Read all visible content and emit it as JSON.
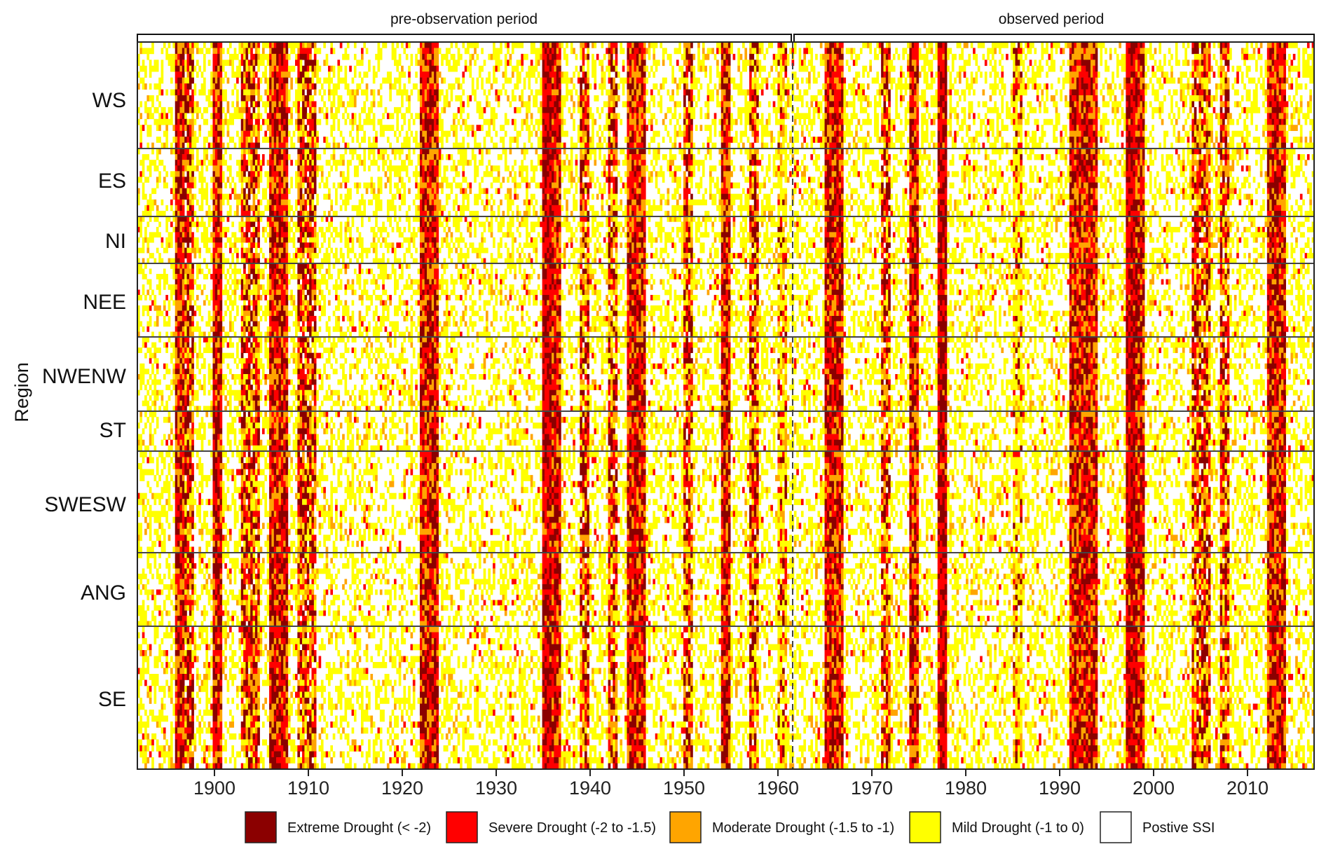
{
  "chart_data": {
    "type": "heatmap",
    "x_range": [
      1891,
      2016
    ],
    "x_ticks": [
      1900,
      1910,
      1920,
      1930,
      1940,
      1950,
      1960,
      1970,
      1980,
      1990,
      2000,
      2010
    ],
    "ylabel": "Region",
    "periods": [
      {
        "label": "pre-observation period",
        "start": 1891,
        "end": 1961
      },
      {
        "label": "observed period",
        "start": 1961,
        "end": 2016
      }
    ],
    "divider_year": 1961,
    "regions": [
      "WS",
      "ES",
      "NI",
      "NEE",
      "NWENW",
      "ST",
      "SWESW",
      "ANG",
      "SE"
    ],
    "legend": [
      {
        "label": "Extreme Drought (< -2)",
        "color": "#8b0000"
      },
      {
        "label": "Severe Drought (-2 to -1.5)",
        "color": "#ff0000"
      },
      {
        "label": "Moderate Drought (-1.5 to -1)",
        "color": "#ffa500"
      },
      {
        "label": "Mild Drought (-1 to 0)",
        "color": "#ffff00"
      },
      {
        "label": "Postive SSI",
        "color": "#ffffff"
      }
    ],
    "drought_years": [
      {
        "year": 1895,
        "level": 3
      },
      {
        "year": 1896,
        "level": 2
      },
      {
        "year": 1899,
        "level": 3
      },
      {
        "year": 1902,
        "level": 2
      },
      {
        "year": 1903,
        "level": 2
      },
      {
        "year": 1905,
        "level": 3
      },
      {
        "year": 1906,
        "level": 3
      },
      {
        "year": 1908,
        "level": 2
      },
      {
        "year": 1909,
        "level": 2
      },
      {
        "year": 1921,
        "level": 3
      },
      {
        "year": 1922,
        "level": 3
      },
      {
        "year": 1934,
        "level": 4
      },
      {
        "year": 1935,
        "level": 3
      },
      {
        "year": 1938,
        "level": 2
      },
      {
        "year": 1941,
        "level": 2
      },
      {
        "year": 1943,
        "level": 3
      },
      {
        "year": 1944,
        "level": 3
      },
      {
        "year": 1949,
        "level": 2
      },
      {
        "year": 1953,
        "level": 3
      },
      {
        "year": 1956,
        "level": 2
      },
      {
        "year": 1959,
        "level": 1
      },
      {
        "year": 1964,
        "level": 3
      },
      {
        "year": 1965,
        "level": 3
      },
      {
        "year": 1970,
        "level": 2
      },
      {
        "year": 1973,
        "level": 3
      },
      {
        "year": 1976,
        "level": 4
      },
      {
        "year": 1984,
        "level": 1
      },
      {
        "year": 1990,
        "level": 3
      },
      {
        "year": 1991,
        "level": 3
      },
      {
        "year": 1992,
        "level": 3
      },
      {
        "year": 1996,
        "level": 4
      },
      {
        "year": 1997,
        "level": 3
      },
      {
        "year": 2003,
        "level": 2
      },
      {
        "year": 2004,
        "level": 2
      },
      {
        "year": 2006,
        "level": 2
      },
      {
        "year": 2011,
        "level": 3
      },
      {
        "year": 2012,
        "level": 3
      }
    ]
  }
}
